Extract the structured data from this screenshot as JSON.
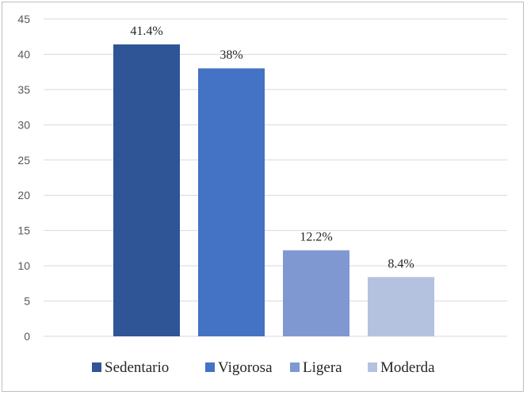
{
  "chart_data": {
    "type": "bar",
    "categories": [
      "Sedentario",
      "Vigorosa",
      "Ligera",
      "Moderda"
    ],
    "values": [
      41.4,
      38,
      12.2,
      8.4
    ],
    "data_labels": [
      "41.4%",
      "38%",
      "12.2%",
      "8.4%"
    ],
    "colors": [
      "#2f5597",
      "#4472c4",
      "#7f98d1",
      "#b4c2e0"
    ],
    "title": "",
    "xlabel": "",
    "ylabel": "",
    "ylim": [
      0,
      45
    ],
    "yticks": [
      0,
      5,
      10,
      15,
      20,
      25,
      30,
      35,
      40,
      45
    ],
    "ytick_labels": [
      "0",
      "5",
      "10",
      "15",
      "20",
      "25",
      "30",
      "35",
      "40",
      "45"
    ],
    "grid": "horizontal",
    "legend_position": "bottom"
  }
}
